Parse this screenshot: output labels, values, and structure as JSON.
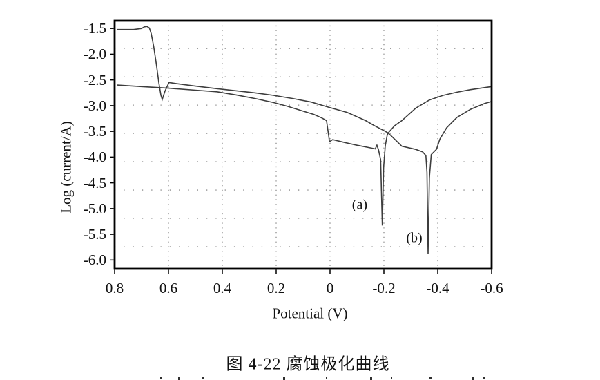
{
  "figure": {
    "caption": "图 4-22 腐蚀极化曲线"
  },
  "chart_data": {
    "type": "line",
    "title": "图 4-22 腐蚀极化曲线",
    "xlabel": "Potential (V)",
    "ylabel": "Log (current/A)",
    "x_axis_reversed": true,
    "xlim": [
      0.8,
      -0.6
    ],
    "ylim": [
      -6.17,
      -1.35
    ],
    "x_ticks": {
      "values": [
        0.8,
        0.6,
        0.4,
        0.2,
        0,
        -0.2,
        -0.4,
        -0.6
      ],
      "labels": [
        "0.8",
        "0.6",
        "0.4",
        "0.2",
        "0",
        "-0.2",
        "-0.4",
        "-0.6"
      ]
    },
    "y_ticks": {
      "values": [
        -1.5,
        -2,
        -2.5,
        -3,
        -3.5,
        -4,
        -4.5,
        -5,
        -5.5,
        -6
      ],
      "labels": [
        "-1.5",
        "-2.0",
        "-2.5",
        "-3.0",
        "-3.5",
        "-4.0",
        "-4.5",
        "-5.0",
        "-5.5",
        "-6.0"
      ]
    },
    "grid": {
      "style": "dotted",
      "x_values": [
        0.6,
        0.4,
        0.2,
        0,
        -0.2,
        -0.4
      ],
      "y_values": [
        -1.89,
        -2.44,
        -2.99,
        -3.54,
        -4.09,
        -4.64,
        -5.19,
        -5.74
      ]
    },
    "annotations": [
      {
        "label": "(a)",
        "x": -0.11,
        "y": -4.93
      },
      {
        "label": "(b)",
        "x": -0.313,
        "y": -5.58
      }
    ],
    "colors": {
      "curve": "#3d3d3d",
      "frame": "#000000",
      "grid": "#8c8c8c",
      "text": "#111111"
    },
    "series": [
      {
        "name": "(a)",
        "corrosion_potential_V": -0.194,
        "spike_min_logI": -5.33,
        "points": [
          [
            0.79,
            -2.6
          ],
          [
            0.7,
            -2.63
          ],
          [
            0.6,
            -2.66
          ],
          [
            0.5,
            -2.7
          ],
          [
            0.42,
            -2.73
          ],
          [
            0.35,
            -2.79
          ],
          [
            0.28,
            -2.86
          ],
          [
            0.21,
            -2.94
          ],
          [
            0.16,
            -3.01
          ],
          [
            0.11,
            -3.09
          ],
          [
            0.06,
            -3.17
          ],
          [
            0.03,
            -3.24
          ],
          [
            0.013,
            -3.29
          ],
          [
            0.006,
            -3.55
          ],
          [
            0.002,
            -3.7
          ],
          [
            -0.01,
            -3.66
          ],
          [
            -0.05,
            -3.71
          ],
          [
            -0.1,
            -3.77
          ],
          [
            -0.15,
            -3.82
          ],
          [
            -0.168,
            -3.84
          ],
          [
            -0.174,
            -3.77
          ],
          [
            -0.18,
            -3.86
          ],
          [
            -0.188,
            -4.05
          ],
          [
            -0.194,
            -5.33
          ],
          [
            -0.199,
            -4.2
          ],
          [
            -0.205,
            -3.78
          ],
          [
            -0.212,
            -3.58
          ],
          [
            -0.216,
            -3.53
          ],
          [
            -0.24,
            -3.39
          ],
          [
            -0.267,
            -3.29
          ],
          [
            -0.318,
            -3.05
          ],
          [
            -0.369,
            -2.89
          ],
          [
            -0.42,
            -2.8
          ],
          [
            -0.47,
            -2.74
          ],
          [
            -0.52,
            -2.69
          ],
          [
            -0.573,
            -2.65
          ],
          [
            -0.6,
            -2.63
          ]
        ]
      },
      {
        "name": "(b)",
        "corrosion_potential_V": -0.364,
        "spike_min_logI": -5.88,
        "points": [
          [
            0.79,
            -1.52
          ],
          [
            0.73,
            -1.52
          ],
          [
            0.7,
            -1.5
          ],
          [
            0.69,
            -1.47
          ],
          [
            0.68,
            -1.46
          ],
          [
            0.671,
            -1.49
          ],
          [
            0.664,
            -1.6
          ],
          [
            0.655,
            -1.85
          ],
          [
            0.645,
            -2.2
          ],
          [
            0.636,
            -2.55
          ],
          [
            0.628,
            -2.8
          ],
          [
            0.623,
            -2.88
          ],
          [
            0.613,
            -2.72
          ],
          [
            0.598,
            -2.55
          ],
          [
            0.56,
            -2.58
          ],
          [
            0.5,
            -2.62
          ],
          [
            0.42,
            -2.67
          ],
          [
            0.35,
            -2.71
          ],
          [
            0.28,
            -2.75
          ],
          [
            0.21,
            -2.8
          ],
          [
            0.14,
            -2.86
          ],
          [
            0.07,
            -2.93
          ],
          [
            0.006,
            -3.03
          ],
          [
            -0.063,
            -3.13
          ],
          [
            -0.132,
            -3.29
          ],
          [
            -0.165,
            -3.39
          ],
          [
            -0.191,
            -3.46
          ],
          [
            -0.216,
            -3.53
          ],
          [
            -0.267,
            -3.79
          ],
          [
            -0.318,
            -3.85
          ],
          [
            -0.344,
            -3.9
          ],
          [
            -0.356,
            -3.97
          ],
          [
            -0.36,
            -4.3
          ],
          [
            -0.364,
            -5.88
          ],
          [
            -0.369,
            -4.4
          ],
          [
            -0.376,
            -3.95
          ],
          [
            -0.395,
            -3.85
          ],
          [
            -0.408,
            -3.65
          ],
          [
            -0.433,
            -3.43
          ],
          [
            -0.471,
            -3.23
          ],
          [
            -0.522,
            -3.07
          ],
          [
            -0.573,
            -2.96
          ],
          [
            -0.6,
            -2.92
          ]
        ]
      }
    ]
  }
}
